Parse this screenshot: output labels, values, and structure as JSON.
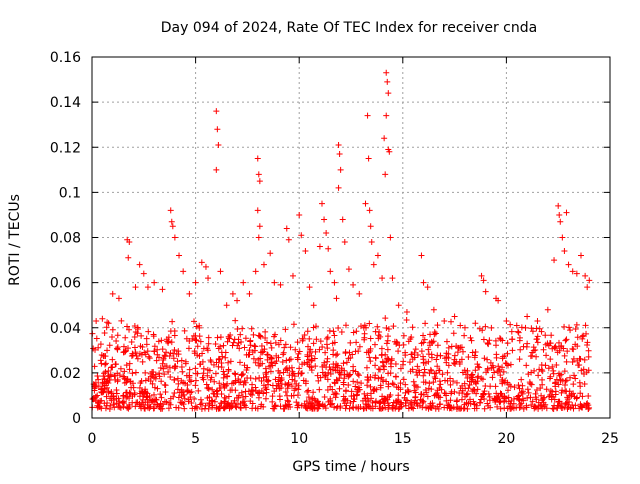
{
  "chart_data": {
    "type": "scatter",
    "title": "Day 094 of 2024, Rate Of TEC Index for receiver cnda",
    "xlabel": "GPS time / hours",
    "ylabel": "ROTI / TECUs",
    "xlim": [
      0,
      25
    ],
    "ylim": [
      0,
      0.16
    ],
    "xticks": [
      0,
      5,
      10,
      15,
      20,
      25
    ],
    "xtick_labels": [
      "0",
      "5",
      "10",
      "15",
      "20",
      "25"
    ],
    "yticks": [
      0,
      0.02,
      0.04,
      0.06,
      0.08,
      0.1,
      0.12,
      0.14,
      0.16
    ],
    "ytick_labels": [
      "0",
      "0.02",
      "0.04",
      "0.06",
      "0.08",
      "0.1",
      "0.12",
      "0.14",
      "0.16"
    ],
    "grid": true,
    "marker": "+",
    "color": "#ff0000",
    "series": [
      {
        "name": "ROTI",
        "points": [
          [
            0.2,
            0.043
          ],
          [
            0.5,
            0.044
          ],
          [
            0.8,
            0.042
          ],
          [
            1.0,
            0.055
          ],
          [
            1.3,
            0.053
          ],
          [
            1.7,
            0.079
          ],
          [
            1.8,
            0.078
          ],
          [
            1.75,
            0.071
          ],
          [
            2.1,
            0.058
          ],
          [
            2.3,
            0.068
          ],
          [
            2.5,
            0.064
          ],
          [
            2.7,
            0.058
          ],
          [
            3.0,
            0.06
          ],
          [
            3.4,
            0.057
          ],
          [
            3.8,
            0.092
          ],
          [
            3.85,
            0.087
          ],
          [
            3.9,
            0.085
          ],
          [
            4.0,
            0.08
          ],
          [
            4.2,
            0.072
          ],
          [
            4.4,
            0.065
          ],
          [
            4.7,
            0.055
          ],
          [
            5.0,
            0.06
          ],
          [
            5.3,
            0.069
          ],
          [
            5.5,
            0.067
          ],
          [
            5.6,
            0.062
          ],
          [
            6.0,
            0.136
          ],
          [
            6.05,
            0.128
          ],
          [
            6.1,
            0.121
          ],
          [
            6.0,
            0.11
          ],
          [
            6.2,
            0.065
          ],
          [
            6.5,
            0.05
          ],
          [
            6.8,
            0.055
          ],
          [
            7.0,
            0.052
          ],
          [
            7.3,
            0.06
          ],
          [
            7.6,
            0.055
          ],
          [
            7.9,
            0.065
          ],
          [
            8.0,
            0.115
          ],
          [
            8.05,
            0.108
          ],
          [
            8.1,
            0.105
          ],
          [
            8.0,
            0.092
          ],
          [
            8.1,
            0.085
          ],
          [
            8.05,
            0.08
          ],
          [
            8.3,
            0.068
          ],
          [
            8.6,
            0.073
          ],
          [
            8.8,
            0.06
          ],
          [
            9.1,
            0.059
          ],
          [
            9.4,
            0.084
          ],
          [
            9.5,
            0.079
          ],
          [
            9.7,
            0.063
          ],
          [
            10.0,
            0.09
          ],
          [
            10.1,
            0.081
          ],
          [
            10.3,
            0.074
          ],
          [
            10.5,
            0.058
          ],
          [
            10.7,
            0.05
          ],
          [
            11.0,
            0.076
          ],
          [
            11.1,
            0.095
          ],
          [
            11.2,
            0.088
          ],
          [
            11.3,
            0.082
          ],
          [
            11.4,
            0.075
          ],
          [
            11.5,
            0.065
          ],
          [
            11.7,
            0.06
          ],
          [
            11.8,
            0.053
          ],
          [
            11.9,
            0.121
          ],
          [
            11.95,
            0.117
          ],
          [
            12.0,
            0.11
          ],
          [
            11.9,
            0.102
          ],
          [
            12.1,
            0.088
          ],
          [
            12.2,
            0.078
          ],
          [
            12.4,
            0.066
          ],
          [
            12.6,
            0.059
          ],
          [
            12.9,
            0.055
          ],
          [
            13.2,
            0.095
          ],
          [
            13.3,
            0.134
          ],
          [
            13.35,
            0.115
          ],
          [
            13.4,
            0.092
          ],
          [
            13.45,
            0.085
          ],
          [
            13.5,
            0.078
          ],
          [
            13.6,
            0.068
          ],
          [
            13.8,
            0.072
          ],
          [
            14.0,
            0.062
          ],
          [
            14.1,
            0.124
          ],
          [
            14.15,
            0.108
          ],
          [
            14.2,
            0.153
          ],
          [
            14.25,
            0.149
          ],
          [
            14.3,
            0.144
          ],
          [
            14.2,
            0.134
          ],
          [
            14.3,
            0.119
          ],
          [
            14.35,
            0.118
          ],
          [
            14.4,
            0.08
          ],
          [
            14.5,
            0.062
          ],
          [
            14.8,
            0.05
          ],
          [
            15.2,
            0.047
          ],
          [
            15.9,
            0.072
          ],
          [
            16.0,
            0.06
          ],
          [
            16.2,
            0.058
          ],
          [
            16.5,
            0.048
          ],
          [
            17.0,
            0.043
          ],
          [
            17.5,
            0.045
          ],
          [
            18.0,
            0.04
          ],
          [
            18.5,
            0.042
          ],
          [
            18.8,
            0.063
          ],
          [
            18.9,
            0.061
          ],
          [
            19.0,
            0.056
          ],
          [
            19.5,
            0.053
          ],
          [
            19.6,
            0.052
          ],
          [
            20.0,
            0.043
          ],
          [
            20.5,
            0.041
          ],
          [
            21.0,
            0.045
          ],
          [
            21.5,
            0.043
          ],
          [
            22.0,
            0.048
          ],
          [
            22.3,
            0.07
          ],
          [
            22.5,
            0.094
          ],
          [
            22.55,
            0.09
          ],
          [
            22.6,
            0.087
          ],
          [
            22.7,
            0.08
          ],
          [
            22.8,
            0.074
          ],
          [
            22.9,
            0.091
          ],
          [
            23.0,
            0.068
          ],
          [
            23.2,
            0.065
          ],
          [
            23.4,
            0.064
          ],
          [
            23.6,
            0.072
          ],
          [
            23.8,
            0.063
          ],
          [
            24.0,
            0.061
          ],
          [
            23.9,
            0.058
          ]
        ],
        "dense_band": {
          "x_start": 0,
          "x_end": 24,
          "y_min": 0.004,
          "y_max": 0.045,
          "count": 1800
        }
      }
    ]
  }
}
